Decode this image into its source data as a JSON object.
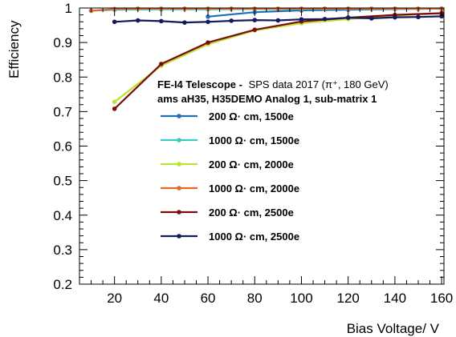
{
  "chart_data": {
    "type": "line",
    "xlabel": "Bias Voltage/ V",
    "ylabel": "Efficiency",
    "xlim": [
      5,
      161
    ],
    "ylim": [
      0.2,
      1.0
    ],
    "x_ticks": [
      20,
      40,
      60,
      80,
      100,
      120,
      140,
      160
    ],
    "y_ticks": [
      0.2,
      0.3,
      0.4,
      0.5,
      0.6,
      0.7,
      0.8,
      0.9,
      1.0
    ],
    "x_tick_labels": [
      "20",
      "40",
      "60",
      "80",
      "100",
      "120",
      "140",
      "160"
    ],
    "y_tick_labels": [
      "0.2",
      "0.3",
      "0.4",
      "0.5",
      "0.6",
      "0.7",
      "0.8",
      "0.9",
      "1"
    ],
    "grid": false,
    "legend_position": "center",
    "header": {
      "line1_bold": "FE-I4 Telescope -",
      "line1_rest": "SPS data 2017 (π⁺, 180 GeV)",
      "line2": "ams aH35, H35DEMO Analog 1, sub-matrix 1"
    },
    "series": [
      {
        "name": "200 Ω· cm, 1500e",
        "color": "#1f6fb5",
        "x": [
          60,
          80,
          100,
          120,
          140,
          160
        ],
        "y": [
          0.975,
          0.988,
          0.993,
          0.995,
          0.997,
          0.998
        ]
      },
      {
        "name": "1000 Ω· cm, 1500e",
        "color": "#3ec6c2",
        "x": [
          10,
          20,
          40,
          60,
          80,
          100,
          120,
          140,
          160
        ],
        "y": [
          0.992,
          0.995,
          0.996,
          0.996,
          0.997,
          0.997,
          0.998,
          0.998,
          0.998
        ]
      },
      {
        "name": "200 Ω· cm, 2000e",
        "color": "#b9e232",
        "x": [
          20,
          40,
          60,
          80,
          100,
          120,
          140,
          160
        ],
        "y": [
          0.728,
          0.833,
          0.895,
          0.935,
          0.956,
          0.968,
          0.978,
          0.985
        ]
      },
      {
        "name": "1000 Ω· cm, 2000e",
        "color": "#e06a2c",
        "x": [
          10,
          20,
          30,
          40,
          50,
          60,
          70,
          80,
          90,
          100,
          110,
          120,
          130,
          140,
          150,
          160
        ],
        "y": [
          0.992,
          0.997,
          0.998,
          0.998,
          0.998,
          0.998,
          0.998,
          0.998,
          0.998,
          0.998,
          0.998,
          0.998,
          0.998,
          0.998,
          0.998,
          0.998
        ]
      },
      {
        "name": "200 Ω· cm, 2500e",
        "color": "#7a0c0c",
        "x": [
          20,
          40,
          60,
          80,
          100,
          120,
          140,
          160
        ],
        "y": [
          0.708,
          0.838,
          0.9,
          0.937,
          0.961,
          0.972,
          0.98,
          0.985
        ]
      },
      {
        "name": "1000 Ω· cm, 2500e",
        "color": "#151a5e",
        "x": [
          20,
          30,
          40,
          50,
          60,
          70,
          80,
          90,
          100,
          110,
          120,
          130,
          140,
          150,
          160
        ],
        "y": [
          0.96,
          0.964,
          0.962,
          0.958,
          0.96,
          0.963,
          0.965,
          0.964,
          0.967,
          0.968,
          0.972,
          0.97,
          0.973,
          0.974,
          0.976
        ]
      }
    ]
  }
}
